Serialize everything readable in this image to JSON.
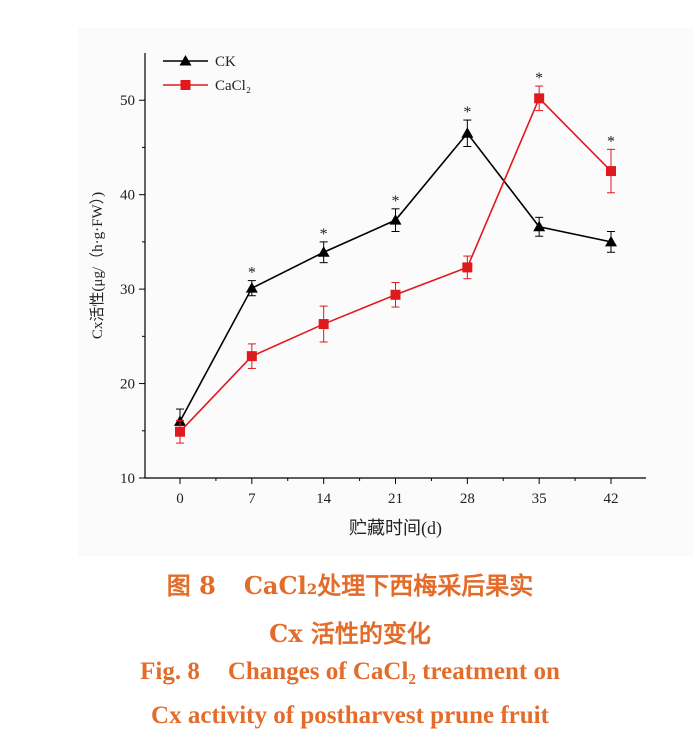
{
  "caption": {
    "zh_line1_num": "图 8",
    "zh_line1_text": "CaCl₂处理下西梅采后果实",
    "zh_line2": "Cx 活性的变化",
    "en_line1_num": "Fig. 8",
    "en_line1_text": "Changes of CaCl₂ treatment on",
    "en_line2": "Cx activity of postharvest prune fruit"
  },
  "chart_data": {
    "type": "line",
    "xlabel": "贮藏时间(d)",
    "ylabel": "Cx活性(μg/（h·g·FW）)",
    "x": [
      0,
      7,
      14,
      21,
      28,
      35,
      42
    ],
    "ylim": [
      10,
      55
    ],
    "yticks": [
      10,
      20,
      30,
      40,
      50
    ],
    "grid": false,
    "legend_position": "top-left",
    "significance_marker": "*",
    "series": [
      {
        "name": "CK",
        "color": "#000000",
        "marker": "triangle",
        "values": [
          16.0,
          30.1,
          33.9,
          37.3,
          46.5,
          36.6,
          35.0
        ],
        "errors": [
          1.3,
          0.8,
          1.1,
          1.2,
          1.4,
          1.0,
          1.1
        ],
        "significant": [
          false,
          true,
          true,
          true,
          true,
          false,
          false
        ]
      },
      {
        "name": "CaCl₂",
        "color": "#e0191e",
        "marker": "square",
        "values": [
          14.9,
          22.9,
          26.3,
          29.4,
          32.3,
          50.2,
          42.5
        ],
        "errors": [
          1.2,
          1.3,
          1.9,
          1.3,
          1.2,
          1.3,
          2.3
        ],
        "significant": [
          false,
          false,
          false,
          false,
          false,
          true,
          true
        ]
      }
    ]
  }
}
